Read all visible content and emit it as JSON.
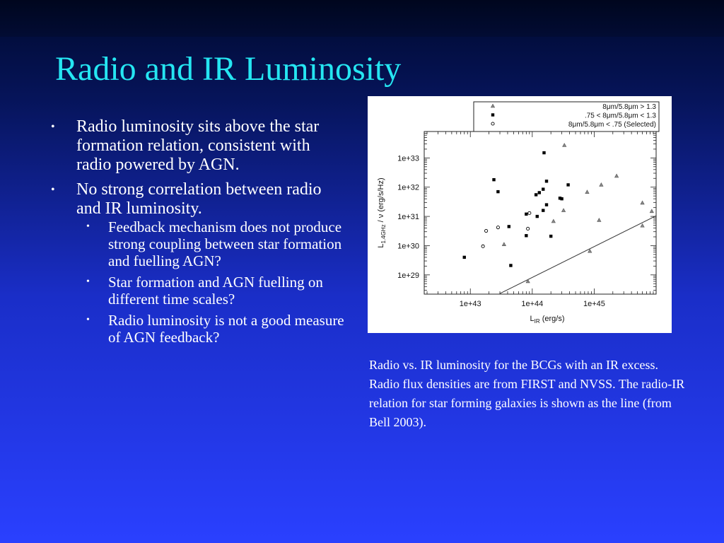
{
  "slide": {
    "title": "Radio and IR Luminosity",
    "bullets": [
      {
        "text": "Radio luminosity sits above the star formation relation, consistent with radio powered by AGN.",
        "children": []
      },
      {
        "text": "No strong correlation between radio and IR  luminosity.",
        "children": [
          "Feedback mechanism does not produce strong coupling between star formation and fuelling AGN?",
          "Star formation and AGN fuelling on different time scales?",
          "Radio luminosity is not a good measure of AGN feedback?"
        ]
      }
    ],
    "caption": "Radio  vs. IR luminosity for the BCGs with an IR excess. Radio flux densities are from FIRST and NVSS. The radio-IR relation for star forming galaxies is shown as the line (from Bell 2003)."
  },
  "chart_data": {
    "type": "scatter",
    "x_scale": "log",
    "y_scale": "log",
    "xlabel": "L_IR (erg/s)",
    "ylabel": "L_1.4GHz / ν (erg/s/Hz)",
    "xlim": [
      1.8e+42,
      1e+46
    ],
    "ylim": [
      2.2e+28,
      8e+33
    ],
    "x_ticks": [
      {
        "value": 1e+43,
        "label": "1e+43"
      },
      {
        "value": 1e+44,
        "label": "1e+44"
      },
      {
        "value": 1e+45,
        "label": "1e+45"
      }
    ],
    "y_ticks": [
      {
        "value": 1e+29,
        "label": "1e+29"
      },
      {
        "value": 1e+30,
        "label": "1e+30"
      },
      {
        "value": 1e+31,
        "label": "1e+31"
      },
      {
        "value": 1e+32,
        "label": "1e+32"
      },
      {
        "value": 1e+33,
        "label": "1e+33"
      }
    ],
    "legend_position": "top-right",
    "series": [
      {
        "name": "8μm/5.8μm > 1.3",
        "marker": "triangle",
        "points": [
          [
            3.3e+44,
            2.7e+33
          ],
          [
            1.3e+45,
            1.2e+32
          ],
          [
            2.3e+45,
            2.4e+32
          ],
          [
            7.7e+44,
            6.8e+31
          ],
          [
            6e+45,
            2.9e+31
          ],
          [
            8.5e+45,
            1.5e+31
          ],
          [
            1.2e+45,
            7.4e+30
          ],
          [
            6e+45,
            4.8e+30
          ],
          [
            2.2e+44,
            6.8e+30
          ],
          [
            3.2e+44,
            1.6e+31
          ],
          [
            3.5e+43,
            1.1e+30
          ],
          [
            8.5e+44,
            6.5e+29
          ],
          [
            8.5e+43,
            6e+28
          ]
        ]
      },
      {
        "name": ".75 < 8μm/5.8μm < 1.3",
        "marker": "square",
        "points": [
          [
            1.55e+44,
            1.5e+33
          ],
          [
            2.4e+43,
            1.8e+32
          ],
          [
            2.8e+43,
            7e+31
          ],
          [
            1.7e+44,
            1.6e+32
          ],
          [
            3.8e+44,
            1.2e+32
          ],
          [
            1.5e+44,
            8.5e+31
          ],
          [
            1.3e+44,
            6.5e+31
          ],
          [
            1.15e+44,
            5.5e+31
          ],
          [
            2.8e+44,
            4.2e+31
          ],
          [
            3e+44,
            4e+31
          ],
          [
            1.7e+44,
            2.5e+31
          ],
          [
            8e+43,
            1.2e+31
          ],
          [
            1.5e+44,
            1.6e+31
          ],
          [
            1.2e+44,
            1e+31
          ],
          [
            4.2e+43,
            4.5e+30
          ],
          [
            8e+43,
            2.2e+30
          ],
          [
            2e+44,
            2.1e+30
          ],
          [
            8e+42,
            4e+29
          ],
          [
            4.5e+43,
            2.1e+29
          ]
        ]
      },
      {
        "name": "8μm/5.8μm < .75 (Selected)",
        "marker": "circle",
        "points": [
          [
            9e+43,
            1.3e+31
          ],
          [
            1.8e+43,
            3.2e+30
          ],
          [
            2.8e+43,
            4.2e+30
          ],
          [
            8.5e+43,
            3.8e+30
          ],
          [
            1.6e+43,
            9.5e+29
          ]
        ]
      }
    ],
    "relation_line": {
      "name": "radio-IR relation for star forming galaxies (Bell 2003)",
      "x": [
        3e+43,
        1e+46
      ],
      "y": [
        2.3e+28,
        1.05e+31
      ]
    }
  }
}
